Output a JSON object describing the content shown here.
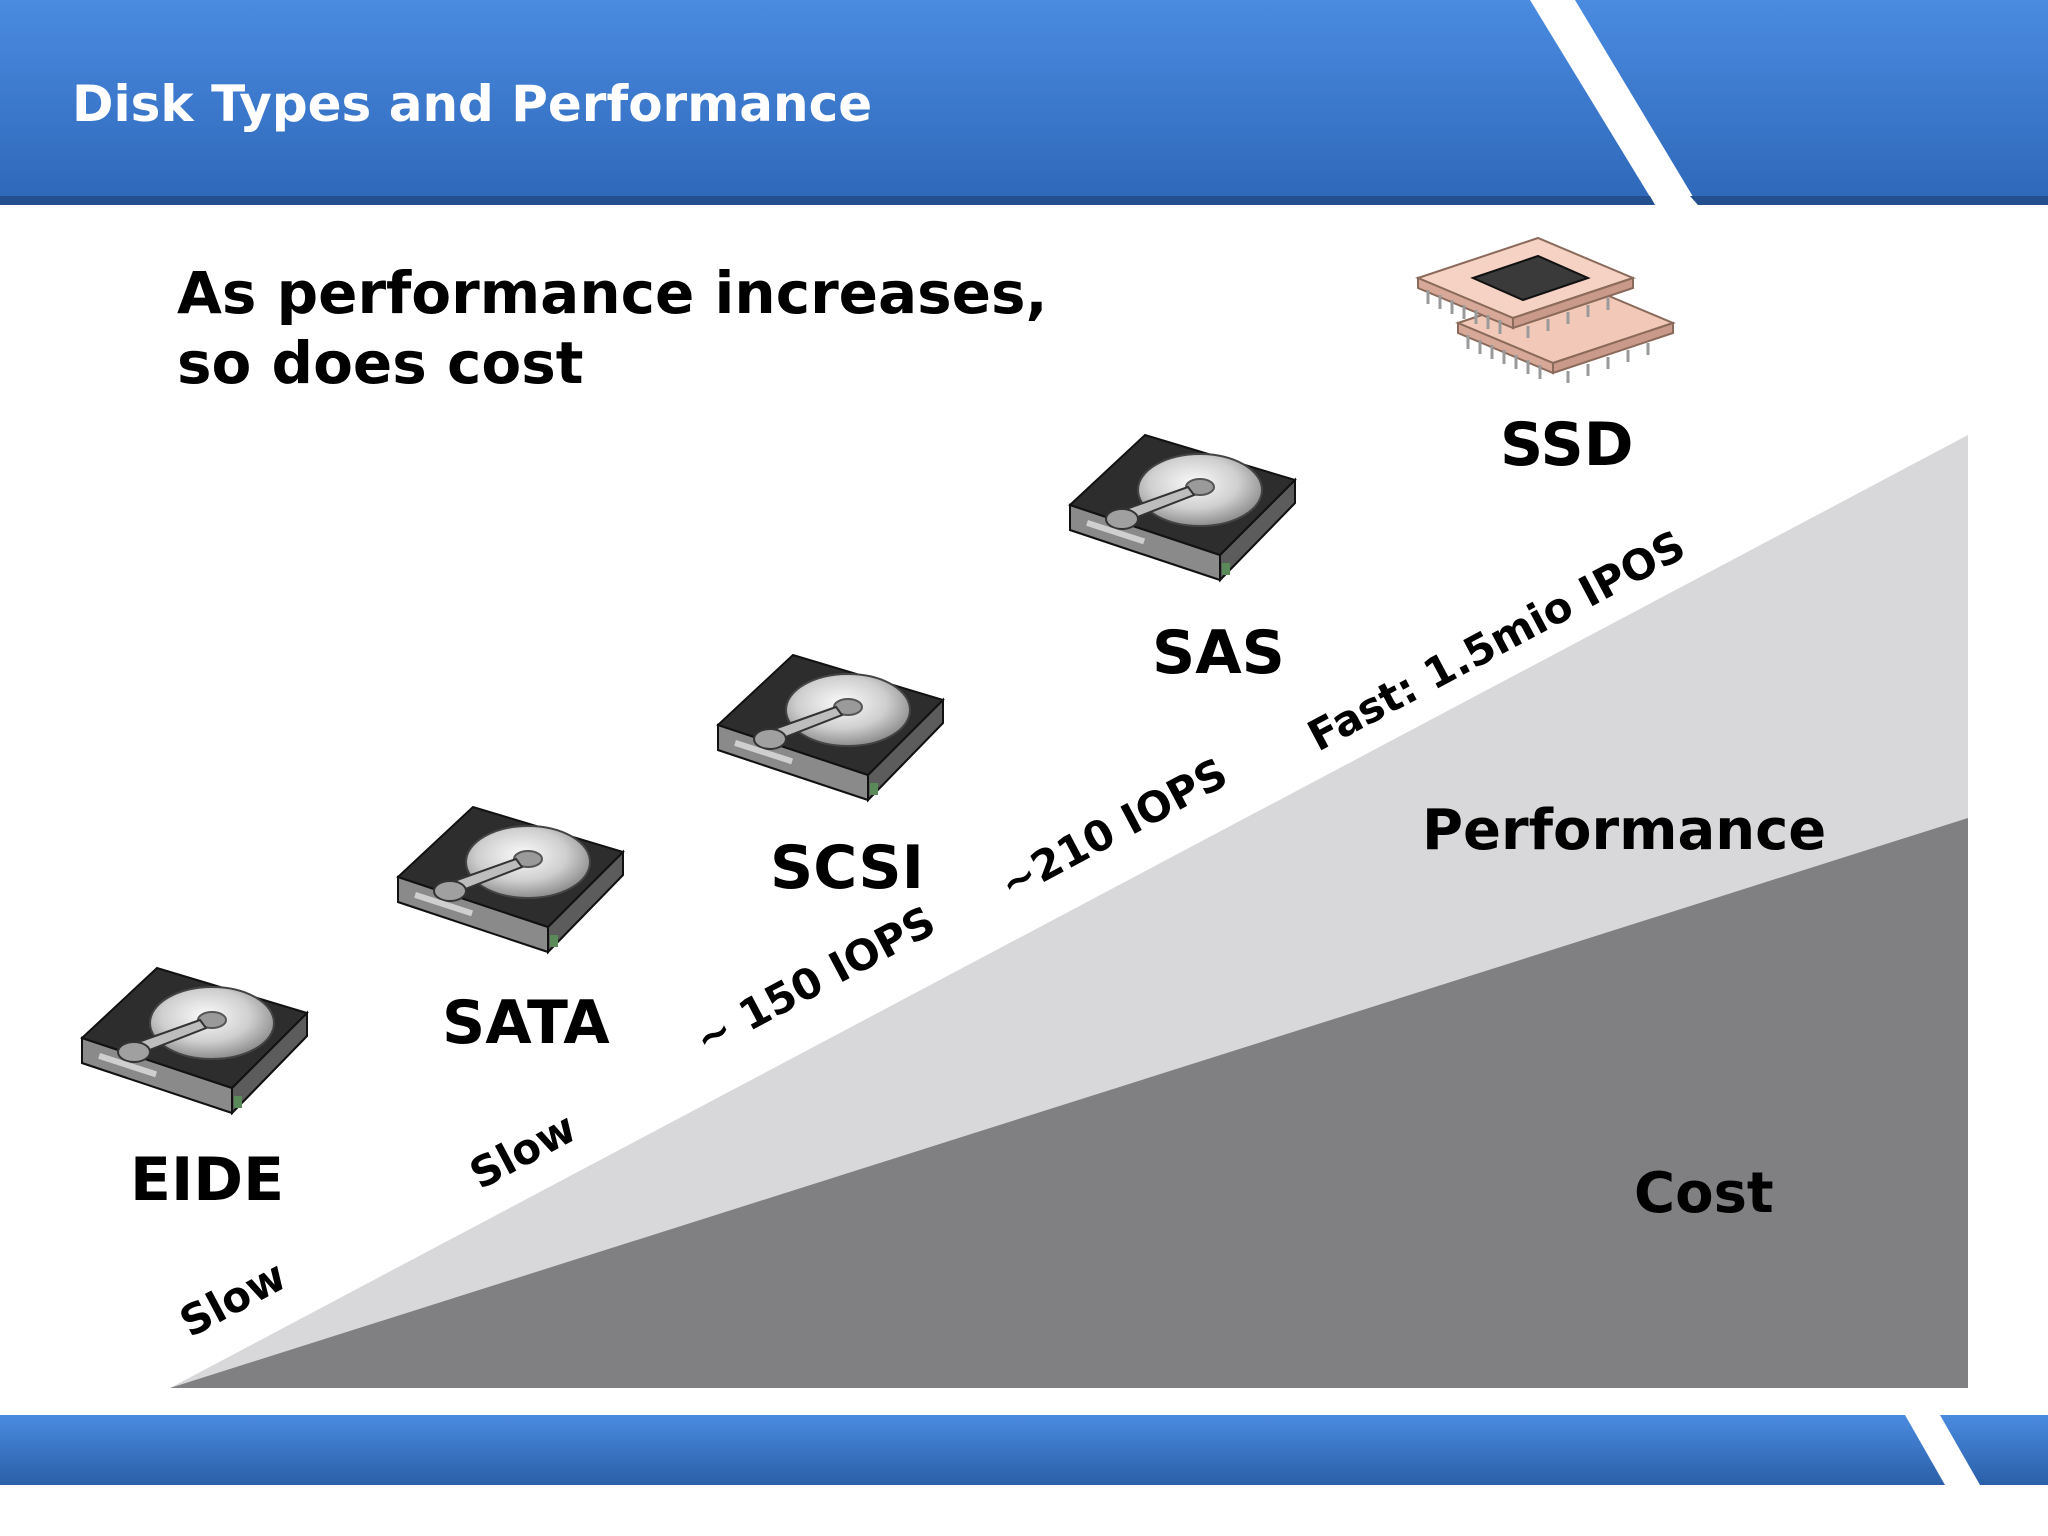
{
  "slide": {
    "title": "Disk Types and Performance",
    "subtitle_line1": "As performance increases,",
    "subtitle_line2": "so does cost"
  },
  "disks": [
    {
      "name": "EIDE",
      "speed": "Slow",
      "icon": "hard-disk-icon"
    },
    {
      "name": "SATA",
      "speed": "Slow",
      "icon": "hard-disk-icon"
    },
    {
      "name": "SCSI",
      "speed": "~ 150 IOPS",
      "icon": "hard-disk-icon"
    },
    {
      "name": "SAS",
      "speed": "~210 IOPS",
      "icon": "hard-disk-icon"
    },
    {
      "name": "SSD",
      "speed": "Fast: 1.5mio IPOS",
      "icon": "chip-icon"
    }
  ],
  "areas": {
    "performance_label": "Performance",
    "cost_label": "Cost"
  },
  "colors": {
    "header_blue": "#3a78c9",
    "header_dark_blue": "#2f63ad",
    "performance_fill": "#d8d7da",
    "cost_fill": "#808083",
    "ssd_board": "#f2c9b8"
  }
}
